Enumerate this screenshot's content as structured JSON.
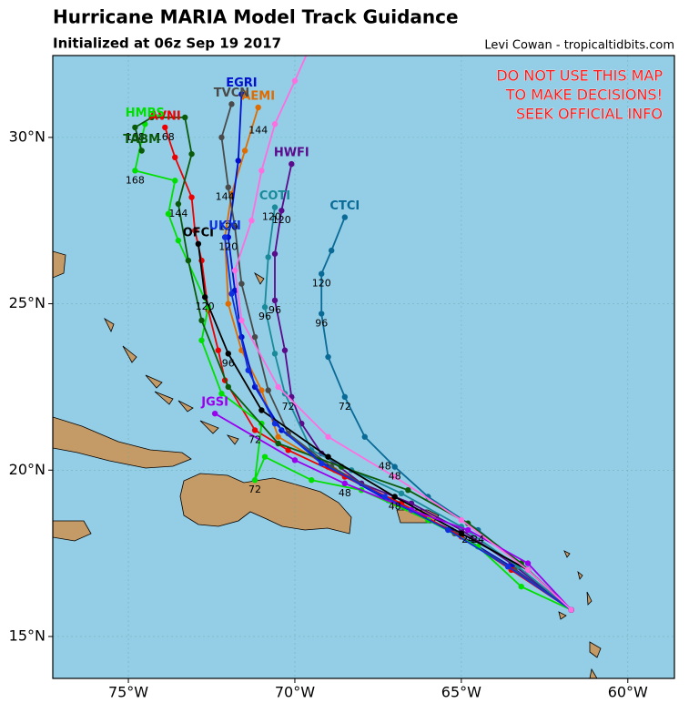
{
  "chart_data": {
    "type": "track-map",
    "title": "Hurricane MARIA Model Track Guidance",
    "subtitle": "Initialized at 06z Sep 19 2017",
    "credit": "Levi Cowan - tropicaltidbits.com",
    "warning": [
      "DO NOT USE THIS MAP",
      "TO MAKE DECISIONS!",
      "SEEK OFFICIAL INFO"
    ],
    "xlim": [
      -77.27,
      -58.6
    ],
    "ylim": [
      13.74,
      32.46
    ],
    "xticks": [
      {
        "value": -75,
        "label": "75°W"
      },
      {
        "value": -70,
        "label": "70°W"
      },
      {
        "value": -65,
        "label": "65°W"
      },
      {
        "value": -60,
        "label": "60°W"
      }
    ],
    "yticks": [
      {
        "value": 15,
        "label": "15°N"
      },
      {
        "value": 20,
        "label": "20°N"
      },
      {
        "value": 25,
        "label": "25°N"
      },
      {
        "value": 30,
        "label": "30°N"
      }
    ],
    "grid": true,
    "series": [
      {
        "name": "CTCI",
        "color": "#0a6a96",
        "lon": [
          -61.7,
          -63,
          -64.5,
          -66,
          -67,
          -67.9,
          -68.5,
          -69,
          -69.2,
          -69.2,
          -68.9,
          -68.5
        ],
        "lat": [
          15.8,
          17,
          18.2,
          19.2,
          20.1,
          21.0,
          22.2,
          23.4,
          24.7,
          25.9,
          26.6,
          27.6
        ],
        "hour_labels": [
          {
            "hour": 24,
            "lon": -64.5,
            "lat": 17.9
          },
          {
            "hour": 48,
            "lon": -67,
            "lat": 19.8
          },
          {
            "hour": 72,
            "lon": -68.5,
            "lat": 21.9
          },
          {
            "hour": 96,
            "lon": -69.2,
            "lat": 24.4
          },
          {
            "hour": 120,
            "lon": -69.2,
            "lat": 25.6
          }
        ]
      },
      {
        "name": "HWFI",
        "color": "#5a0a8a",
        "lon": [
          -61.7,
          -63.5,
          -65,
          -66.5,
          -68,
          -69.2,
          -69.8,
          -70.1,
          -70.3,
          -70.6,
          -70.6,
          -70.4,
          -70.1
        ],
        "lat": [
          15.8,
          17.2,
          18.2,
          19.0,
          19.6,
          20.5,
          21.4,
          22.2,
          23.6,
          25.1,
          26.5,
          27.8,
          29.2
        ],
        "hour_labels": [
          {
            "hour": 72,
            "lon": -70.2,
            "lat": 21.9
          },
          {
            "hour": 96,
            "lon": -70.6,
            "lat": 24.8
          },
          {
            "hour": 120,
            "lon": -70.4,
            "lat": 27.5
          }
        ]
      },
      {
        "name": "COTI",
        "color": "#1a8a9a",
        "lon": [
          -61.7,
          -63.3,
          -65,
          -66.8,
          -68.3,
          -69.5,
          -70.3,
          -70.6,
          -70.9,
          -70.8,
          -70.6
        ],
        "lat": [
          15.8,
          17.1,
          18.3,
          19.3,
          20.0,
          20.6,
          22.3,
          23.5,
          24.9,
          26.4,
          27.9
        ],
        "hour_labels": [
          {
            "hour": 96,
            "lon": -70.9,
            "lat": 24.6
          },
          {
            "hour": 120,
            "lon": -70.7,
            "lat": 27.6
          }
        ]
      },
      {
        "name": "AEMI",
        "color": "#e06c00",
        "lon": [
          -61.7,
          -63.4,
          -65.2,
          -67,
          -68.8,
          -70.5,
          -71,
          -71.6,
          -72,
          -72.1,
          -71.9,
          -71.5,
          -71.1
        ],
        "lat": [
          15.8,
          17.0,
          18.1,
          19.0,
          20.0,
          21.0,
          22.4,
          23.6,
          25.0,
          27.0,
          28.3,
          29.6,
          30.9
        ],
        "hour_labels": [
          {
            "hour": 144,
            "lon": -71.1,
            "lat": 30.2
          }
        ]
      },
      {
        "name": "EGRI",
        "color": "#0010cc",
        "lon": [
          -61.7,
          -63.5,
          -65.3,
          -67.2,
          -69,
          -70.4,
          -71.2,
          -71.6,
          -71.8,
          -72,
          -71.7,
          -71.6
        ],
        "lat": [
          15.8,
          17.1,
          18.2,
          19.1,
          20.1,
          21.2,
          22.5,
          24.0,
          25.4,
          27.0,
          29.3,
          31.3
        ],
        "hour_labels": [
          {
            "hour": 120,
            "lon": -72.0,
            "lat": 26.7
          }
        ]
      },
      {
        "name": "TVCN",
        "color": "#4a4a4a",
        "lon": [
          -61.7,
          -63.4,
          -65.2,
          -67.1,
          -68.9,
          -70.2,
          -70.8,
          -71.2,
          -71.6,
          -71.8,
          -72.0,
          -72.2,
          -71.9
        ],
        "lat": [
          15.8,
          17.0,
          18.1,
          19.1,
          20.1,
          21.1,
          22.4,
          24.0,
          25.6,
          27.3,
          28.5,
          30.0,
          31.0
        ],
        "hour_labels": [
          {
            "hour": 144,
            "lon": -72.1,
            "lat": 28.2
          }
        ]
      },
      {
        "name": "AVNI",
        "color": "#ee0000",
        "lon": [
          -61.7,
          -63.5,
          -65,
          -66.8,
          -68.5,
          -70.2,
          -71.2,
          -72.1,
          -72.3,
          -72.6,
          -72.8,
          -73.0,
          -73.1,
          -73.6,
          -73.9
        ],
        "lat": [
          15.8,
          17.0,
          18.0,
          19.0,
          19.8,
          20.6,
          21.2,
          22.7,
          23.6,
          24.8,
          26.3,
          27.2,
          28.2,
          29.4,
          30.3
        ],
        "hour_labels": [
          {
            "hour": 72,
            "lon": -71.2,
            "lat": 20.9
          },
          {
            "hour": 168,
            "lon": -73.9,
            "lat": 30.0
          }
        ]
      },
      {
        "name": "HMBS",
        "color": "#00e000",
        "lon": [
          -61.7,
          -63.2,
          -64.5,
          -66,
          -68,
          -69.5,
          -70.9,
          -71.2,
          -71,
          -72.2,
          -72.8,
          -72.6,
          -73.5,
          -73.8,
          -73.6,
          -74.8,
          -74.5
        ],
        "lat": [
          15.8,
          16.5,
          17.7,
          18.5,
          19.4,
          19.7,
          20.4,
          19.7,
          21.4,
          22.3,
          23.9,
          24.9,
          26.9,
          27.7,
          28.7,
          29.0,
          30.4
        ],
        "hour_labels": [
          {
            "hour": 72,
            "lon": -71.2,
            "lat": 19.4
          },
          {
            "hour": 168,
            "lon": -74.8,
            "lat": 28.7
          }
        ]
      },
      {
        "name": "TABM",
        "color": "#0a5a0a",
        "lon": [
          -61.7,
          -63.2,
          -64.8,
          -66.6,
          -68.6,
          -70.5,
          -72.0,
          -72.8,
          -73.2,
          -73.5,
          -73.1,
          -73.3,
          -74.3,
          -74.8,
          -74.6
        ],
        "lat": [
          15.8,
          17.2,
          18.4,
          19.4,
          20.1,
          20.8,
          22.5,
          24.5,
          26.3,
          28.0,
          29.5,
          30.6,
          30.6,
          30.3,
          29.6
        ],
        "hour_labels": [
          {
            "hour": 144,
            "lon": -73.5,
            "lat": 27.7
          },
          {
            "hour": 168,
            "lon": -74.8,
            "lat": 30.0
          }
        ]
      },
      {
        "name": "OFCI",
        "color": "#000000",
        "lon": [
          -61.7,
          -63.0,
          -65,
          -67,
          -69,
          -71,
          -72,
          -72.7,
          -72.9
        ],
        "lat": [
          15.8,
          17.0,
          18.1,
          19.2,
          20.4,
          21.8,
          23.5,
          25.2,
          26.8
        ],
        "hour_labels": [
          {
            "hour": 48,
            "lon": -67,
            "lat": 18.9
          },
          {
            "hour": 96,
            "lon": -72,
            "lat": 23.2
          },
          {
            "hour": 120,
            "lon": -72.7,
            "lat": 24.9
          }
        ]
      },
      {
        "name": "JGSI",
        "color": "#9a00ee",
        "lon": [
          -61.7,
          -63,
          -64.8,
          -66.5,
          -68.5,
          -70,
          -72.4
        ],
        "lat": [
          15.8,
          17.2,
          18.2,
          18.8,
          19.6,
          20.3,
          21.7
        ],
        "hour_labels": [
          {
            "hour": 24,
            "lon": -64.8,
            "lat": 17.9
          },
          {
            "hour": 48,
            "lon": -68.5,
            "lat": 19.3
          }
        ]
      },
      {
        "name": "UKXI",
        "color": "#1030e0",
        "lon": [
          -61.7,
          -63.6,
          -65.4,
          -67.3,
          -69.2,
          -70.6,
          -71.4,
          -71.9,
          -72.1
        ],
        "lat": [
          15.8,
          17.1,
          18.2,
          19.2,
          20.2,
          21.4,
          23.0,
          25.3,
          27.0
        ],
        "hour_labels": [
          {
            "hour": 120,
            "lon": -72.0,
            "lat": 27.3
          }
        ]
      },
      {
        "name": "",
        "color": "#ff6ee0",
        "lon": [
          -61.7,
          -63,
          -65,
          -67,
          -69,
          -70.5,
          -71.6,
          -71.8,
          -71.3,
          -71,
          -70.6,
          -70,
          -69.6
        ],
        "lat": [
          15.8,
          17.0,
          18.5,
          19.8,
          21.0,
          22.5,
          24.5,
          26.0,
          27.5,
          29.0,
          30.4,
          31.7,
          32.6
        ],
        "hour_labels": [
          {
            "hour": 48,
            "lon": -67.3,
            "lat": 20.1
          }
        ]
      }
    ]
  }
}
